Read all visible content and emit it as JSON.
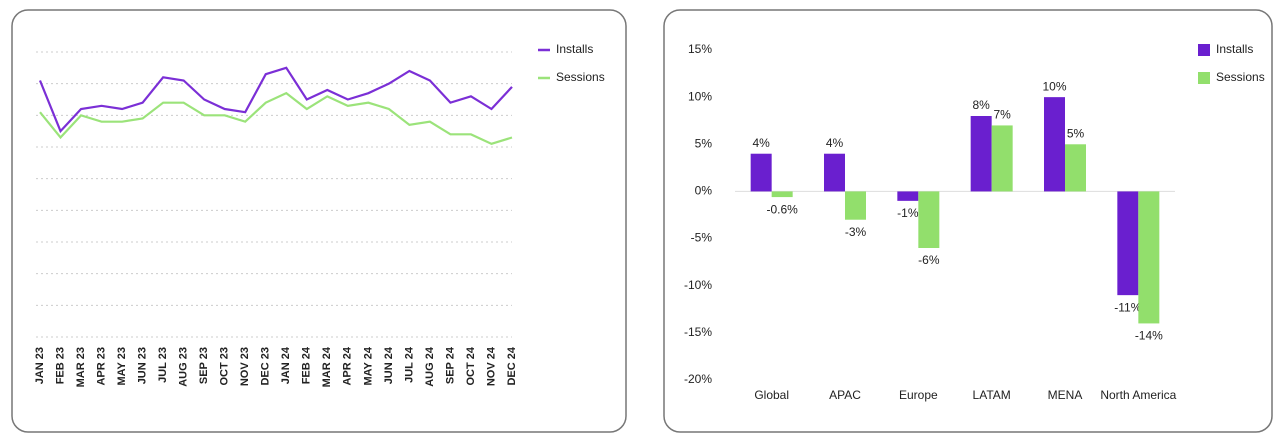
{
  "chart_data": [
    {
      "type": "line",
      "categories": [
        "JAN 23",
        "FEB 23",
        "MAR 23",
        "APR 23",
        "MAY 23",
        "JUN 23",
        "JUL 23",
        "AUG 23",
        "SEP 23",
        "OCT 23",
        "NOV 23",
        "DEC 23",
        "JAN 24",
        "FEB 24",
        "MAR 24",
        "APR 24",
        "MAY 24",
        "JUN 24",
        "JUL 24",
        "AUG 24",
        "SEP 24",
        "OCT 24",
        "NOV 24",
        "DEC 24"
      ],
      "series": [
        {
          "name": "Installs",
          "color": "#7b2fd6",
          "values": [
            8.1,
            6.5,
            7.2,
            7.3,
            7.2,
            7.4,
            8.2,
            8.1,
            7.5,
            7.2,
            7.1,
            8.3,
            8.5,
            7.5,
            7.8,
            7.5,
            7.7,
            8.0,
            8.4,
            8.1,
            7.4,
            7.6,
            7.2,
            7.9
          ]
        },
        {
          "name": "Sessions",
          "color": "#9be37a",
          "values": [
            7.1,
            6.3,
            7.0,
            6.8,
            6.8,
            6.9,
            7.4,
            7.4,
            7.0,
            7.0,
            6.8,
            7.4,
            7.7,
            7.2,
            7.6,
            7.3,
            7.4,
            7.2,
            6.7,
            6.8,
            6.4,
            6.4,
            6.1,
            6.3
          ]
        }
      ],
      "ylim": [
        0,
        9
      ],
      "yticks": [
        0,
        1,
        2,
        3,
        4,
        5,
        6,
        7,
        8,
        9
      ],
      "show_tick_labels": false,
      "grid": true,
      "legend": "top-right"
    },
    {
      "type": "bar",
      "categories": [
        "Global",
        "APAC",
        "Europe",
        "LATAM",
        "MENA",
        "North America"
      ],
      "series": [
        {
          "name": "Installs",
          "color": "#6a1fcf",
          "values": [
            4,
            4,
            -1,
            8,
            10,
            -11
          ],
          "value_labels": [
            "4%",
            "4%",
            "-1%",
            "8%",
            "10%",
            "-11%"
          ]
        },
        {
          "name": "Sessions",
          "color": "#92df6c",
          "values": [
            -0.6,
            -3,
            -6,
            7,
            5,
            -14
          ],
          "value_labels": [
            "-0.6%",
            "-3%",
            "-6%",
            "7%",
            "5%",
            "-14%"
          ]
        }
      ],
      "ylim": [
        -20,
        15
      ],
      "yticks": [
        {
          "value": 15,
          "label": "15%"
        },
        {
          "value": 10,
          "label": "10%"
        },
        {
          "value": 5,
          "label": "5%"
        },
        {
          "value": 0,
          "label": "0%"
        },
        {
          "value": -5,
          "label": "-5%"
        },
        {
          "value": -10,
          "label": "-10%"
        },
        {
          "value": -15,
          "label": "-15%"
        },
        {
          "value": -20,
          "label": "-20%"
        }
      ],
      "show_tick_labels": true,
      "grid": false,
      "legend": "top-right"
    }
  ]
}
